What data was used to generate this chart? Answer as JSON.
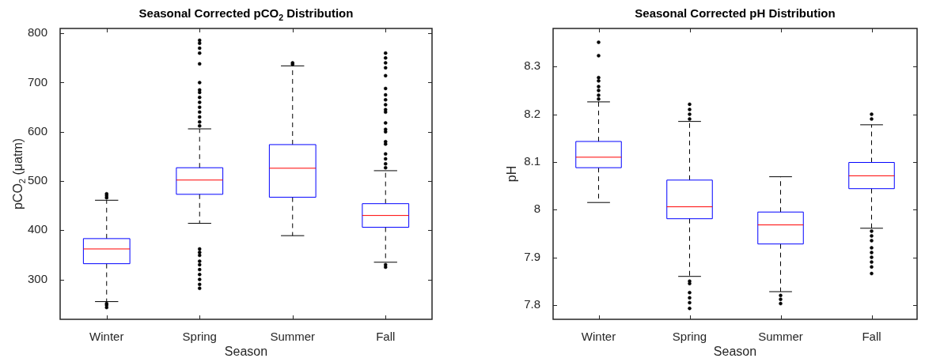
{
  "chart_data": [
    {
      "type": "box",
      "title": "Seasonal Corrected pCO$_{2}$ Distribution",
      "xlabel": "Season",
      "ylabel": "pCO$_{2}$ (μatm)",
      "categories": [
        "Winter",
        "Spring",
        "Summer",
        "Fall"
      ],
      "ylim": [
        219,
        810
      ],
      "yticks": [
        300,
        400,
        500,
        600,
        700,
        800
      ],
      "grid": false,
      "series": [
        {
          "color": "#0000ff",
          "boxes": [
            {
              "low": 255,
              "q1": 332,
              "median": 362,
              "q3": 383,
              "high": 461,
              "outliers": [
                466,
                470,
                474,
                251,
                248,
                243
              ]
            },
            {
              "low": 414,
              "q1": 473,
              "median": 502,
              "q3": 527,
              "high": 606,
              "outliers": [
                612,
                620,
                630,
                640,
                650,
                660,
                670,
                680,
                685,
                700,
                738,
                760,
                770,
                780,
                786,
                282,
                290,
                300,
                310,
                320,
                330,
                337,
                349,
                355,
                362
              ]
            },
            {
              "low": 389,
              "q1": 467,
              "median": 526,
              "q3": 574,
              "high": 734,
              "outliers": [
                737,
                740
              ]
            },
            {
              "low": 335,
              "q1": 406,
              "median": 430,
              "q3": 454,
              "high": 521,
              "outliers": [
                527,
                535,
                545,
                555,
                575,
                580,
                600,
                605,
                618,
                640,
                645,
                655,
                665,
                675,
                688,
                714,
                730,
                740,
                750,
                760,
                325,
                330
              ]
            }
          ]
        }
      ]
    },
    {
      "type": "box",
      "title": "Seasonal Corrected pH Distribution",
      "xlabel": "Season",
      "ylabel": "pH",
      "categories": [
        "Winter",
        "Spring",
        "Summer",
        "Fall"
      ],
      "ylim": [
        7.77,
        8.38
      ],
      "yticks": [
        7.8,
        7.9,
        8,
        8.1,
        8.2,
        8.3
      ],
      "grid": false,
      "series": [
        {
          "color": "#0000ff",
          "boxes": [
            {
              "low": 8.015,
              "q1": 8.088,
              "median": 8.11,
              "q3": 8.143,
              "high": 8.226,
              "outliers": [
                8.232,
                8.24,
                8.25,
                8.258,
                8.27,
                8.277,
                8.323,
                8.351
              ]
            },
            {
              "low": 7.86,
              "q1": 7.981,
              "median": 8.006,
              "q3": 8.062,
              "high": 8.185,
              "outliers": [
                8.19,
                8.2,
                8.21,
                8.221,
                7.845,
                7.85,
                7.826,
                7.815,
                7.805,
                7.793
              ]
            },
            {
              "low": 7.828,
              "q1": 7.928,
              "median": 7.968,
              "q3": 7.995,
              "high": 8.069,
              "outliers": [
                7.82,
                7.812,
                7.803
              ]
            },
            {
              "low": 7.961,
              "q1": 8.044,
              "median": 8.071,
              "q3": 8.099,
              "high": 8.178,
              "outliers": [
                8.19,
                8.2,
                7.955,
                7.945,
                7.935,
                7.92,
                7.91,
                7.9,
                7.89,
                7.88,
                7.866
              ]
            }
          ]
        }
      ]
    }
  ]
}
